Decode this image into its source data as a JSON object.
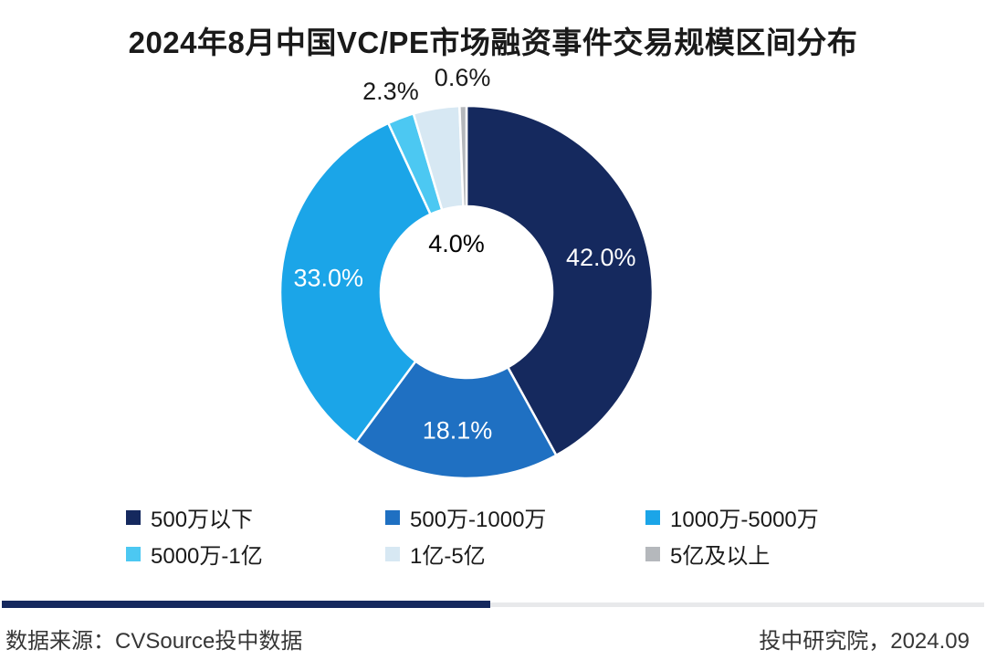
{
  "title": "2024年8月中国VC/PE市场融资事件交易规模区间分布",
  "chart_data": {
    "type": "pie",
    "subtype": "donut",
    "title": "2024年8月中国VC/PE市场融资事件交易规模区间分布",
    "unit": "%",
    "start_angle_deg": 0,
    "direction": "clockwise",
    "inner_radius_ratio": 0.46,
    "legend_position": "bottom",
    "grid": false,
    "slices": [
      {
        "label": "500万以下",
        "value": 42.0,
        "display": "42.0%",
        "color": "#15295e",
        "label_pos": "inside"
      },
      {
        "label": "500万-1000万",
        "value": 18.1,
        "display": "18.1%",
        "color": "#1f70c2",
        "label_pos": "inside"
      },
      {
        "label": "1000万-5000万",
        "value": 33.0,
        "display": "33.0%",
        "color": "#1ba5e8",
        "label_pos": "inside"
      },
      {
        "label": "5000万-1亿",
        "value": 2.3,
        "display": "2.3%",
        "color": "#4cc8f2",
        "label_pos": "outside"
      },
      {
        "label": "1亿-5亿",
        "value": 4.0,
        "display": "4.0%",
        "color": "#d7e8f3",
        "label_pos": "center"
      },
      {
        "label": "5亿及以上",
        "value": 0.6,
        "display": "0.6%",
        "color": "#b5b8bc",
        "label_pos": "outside"
      }
    ],
    "label_colors": {
      "inside": "#ffffff",
      "outside": "#1a1a1a",
      "center": "#000000"
    }
  },
  "footer": {
    "source": "数据来源：CVSource投中数据",
    "credit": "投中研究院，2024.09"
  },
  "styles": {
    "background": "#ffffff",
    "title_color": "#1a1a1a",
    "divider_left_color": "#15295e",
    "divider_right_color": "#e8e9eb"
  }
}
